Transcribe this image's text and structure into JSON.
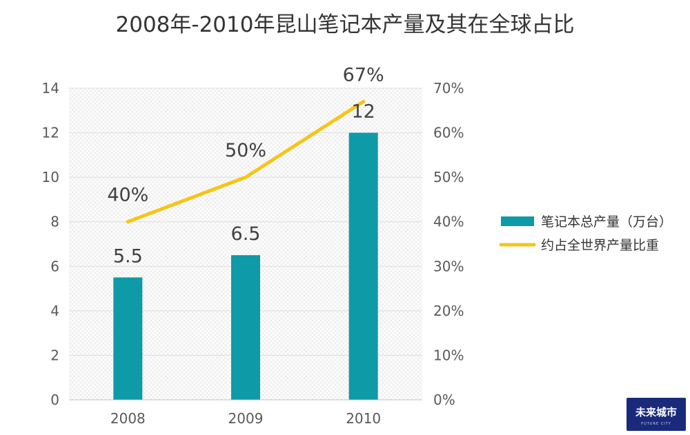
{
  "chart_data": {
    "type": "bar+line",
    "title": "2008年-2010年昆山笔记本产量及其在全球占比",
    "categories": [
      "2008",
      "2009",
      "2010"
    ],
    "series": [
      {
        "name": "笔记本总产量（万台）",
        "type": "bar",
        "axis": "left",
        "values": [
          5.5,
          6.5,
          12
        ],
        "labels": [
          "5.5",
          "6.5",
          "12"
        ],
        "color": "#0e9aa7"
      },
      {
        "name": "约占全世界产量比重",
        "type": "line",
        "axis": "right",
        "values": [
          40,
          50,
          67
        ],
        "labels": [
          "40%",
          "50%",
          "67%"
        ],
        "color": "#f5c518"
      }
    ],
    "y_left": {
      "min": 0,
      "max": 14,
      "ticks": [
        "0",
        "2",
        "4",
        "6",
        "8",
        "10",
        "12",
        "14"
      ]
    },
    "y_right": {
      "min": 0,
      "max": 70,
      "ticks": [
        "0%",
        "10%",
        "20%",
        "30%",
        "40%",
        "50%",
        "60%",
        "70%"
      ]
    },
    "legend_position": "right",
    "grid": true
  },
  "logo": {
    "text": "未来城市",
    "subtext": "FUTURE CITY"
  }
}
